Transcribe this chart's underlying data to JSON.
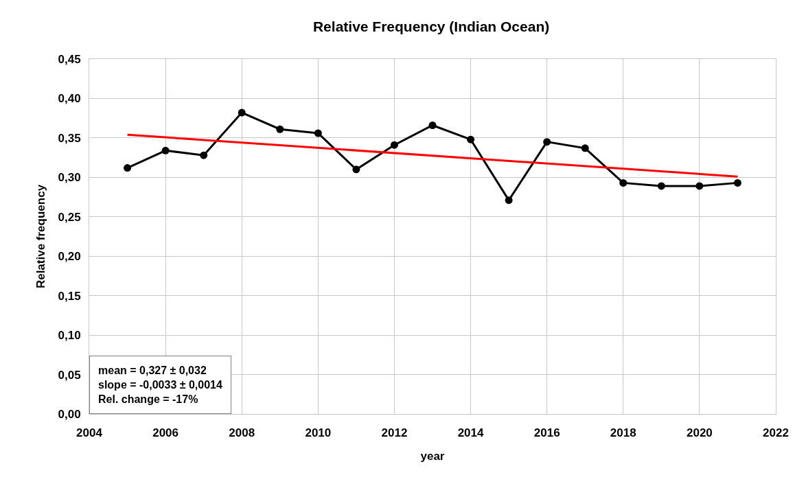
{
  "chart_data": {
    "type": "line",
    "title": "Relative Frequency (Indian Ocean)",
    "xlabel": "year",
    "ylabel": "Relative frequency",
    "x": [
      2005,
      2006,
      2007,
      2008,
      2009,
      2010,
      2011,
      2012,
      2013,
      2014,
      2015,
      2016,
      2017,
      2018,
      2019,
      2020,
      2021
    ],
    "series": [
      {
        "color": "#000000",
        "marker": "circle",
        "values": [
          0.312,
          0.334,
          0.328,
          0.382,
          0.361,
          0.356,
          0.31,
          0.341,
          0.366,
          0.348,
          0.271,
          0.345,
          0.337,
          0.293,
          0.289,
          0.289,
          0.293
        ]
      },
      {
        "type": "line",
        "color": "#ff0000",
        "marker": "none",
        "x": [
          2005,
          2021
        ],
        "values": [
          0.354,
          0.301
        ]
      }
    ],
    "xlim": [
      2004,
      2022
    ],
    "xticks": [
      2004,
      2006,
      2008,
      2010,
      2012,
      2014,
      2016,
      2018,
      2020,
      2022
    ],
    "ylim": [
      0,
      0.45
    ],
    "yticks": [
      {
        "value": 0,
        "label": "0,00"
      },
      {
        "value": 0.05,
        "label": "0,05"
      },
      {
        "value": 0.1,
        "label": "0,10"
      },
      {
        "value": 0.15,
        "label": "0,15"
      },
      {
        "value": 0.2,
        "label": "0,20"
      },
      {
        "value": 0.25,
        "label": "0,25"
      },
      {
        "value": 0.3,
        "label": "0,30"
      },
      {
        "value": 0.35,
        "label": "0,35"
      },
      {
        "value": 0.4,
        "label": "0,40"
      },
      {
        "value": 0.45,
        "label": "0,45"
      }
    ],
    "grid": true,
    "line_style": "solid",
    "annotations": [
      "mean = 0,327 ± 0,032",
      "slope = -0,0033 ± 0,0014",
      "Rel. change = -17%"
    ]
  }
}
